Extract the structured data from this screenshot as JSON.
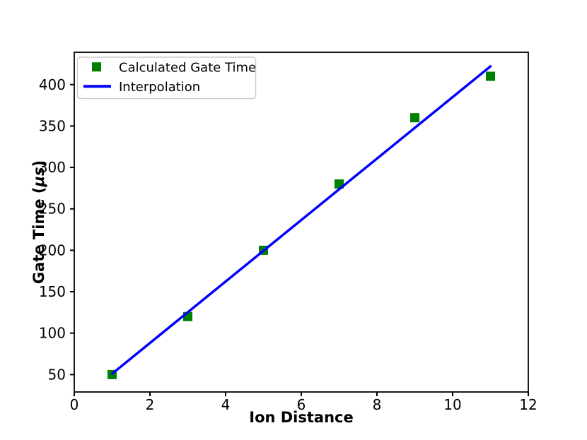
{
  "page": {
    "background_color": "#ffffff"
  },
  "chart_data": {
    "type": "scatter",
    "title": "",
    "xlabel": "Ion Distance",
    "ylabel": "Gate Time (μs)",
    "ylabel_parts": {
      "prefix": "Gate Time (",
      "italic": "μs",
      "suffix": ")"
    },
    "xlim": [
      0,
      12
    ],
    "ylim": [
      29,
      439
    ],
    "xticks": [
      0,
      2,
      4,
      6,
      8,
      10,
      12
    ],
    "yticks": [
      50,
      100,
      150,
      200,
      250,
      300,
      350,
      400
    ],
    "grid": false,
    "axis_color": "#000000",
    "legend": {
      "position": "upper left",
      "border_color": "#cccccc",
      "background_color": "#ffffff"
    },
    "series": [
      {
        "name": "Calculated Gate Time",
        "type": "scatter",
        "marker": "square",
        "color": "#008000",
        "x": [
          1,
          3,
          5,
          7,
          9,
          11
        ],
        "y": [
          50,
          120,
          200,
          280,
          360,
          410
        ]
      },
      {
        "name": "Interpolation",
        "type": "line",
        "color": "#0000ff",
        "x": [
          1,
          11
        ],
        "y": [
          51,
          422
        ]
      }
    ]
  }
}
